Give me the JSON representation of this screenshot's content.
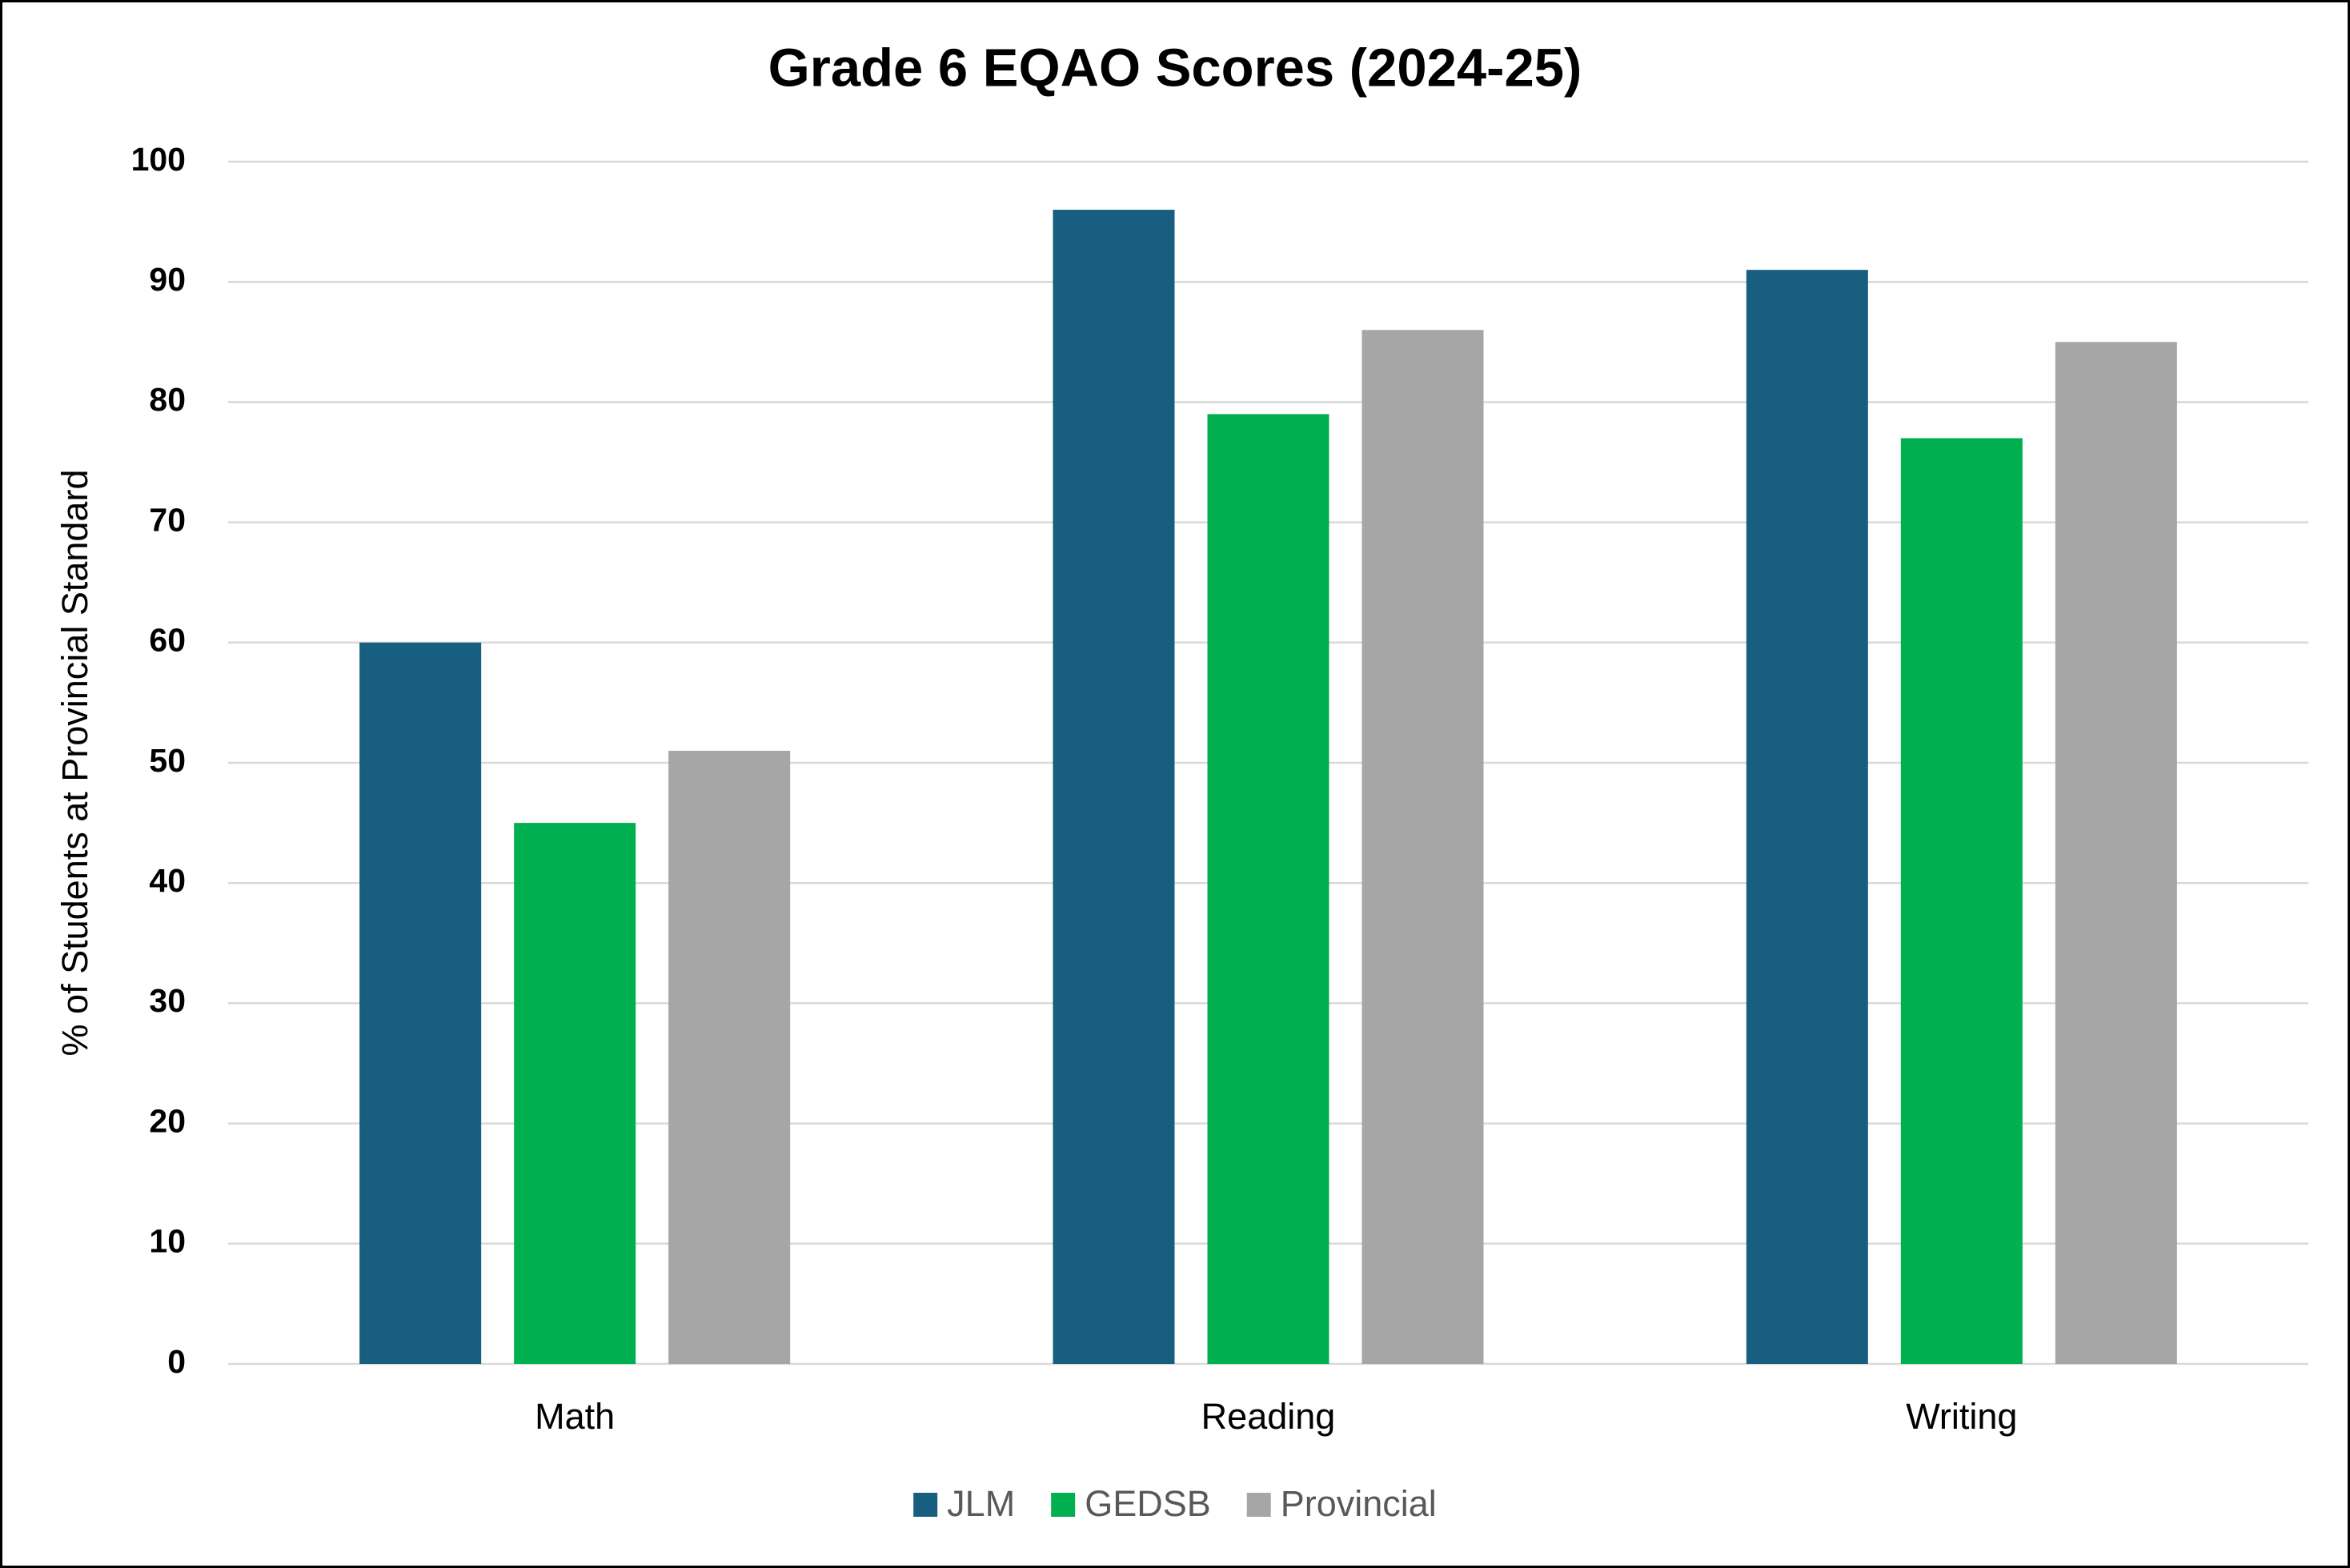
{
  "chart_data": {
    "type": "bar",
    "title": "Grade 6 EQAO Scores (2024-25)",
    "y_label": "% of Students at Provincial Standard",
    "categories": [
      "Math",
      "Reading",
      "Writing"
    ],
    "series": [
      {
        "name": "JLM",
        "color": "#175e80",
        "values": [
          60,
          96,
          91
        ]
      },
      {
        "name": "GEDSB",
        "color": "#00b050",
        "values": [
          45,
          79,
          77
        ]
      },
      {
        "name": "Provincial",
        "color": "#a6a6a6",
        "values": [
          51,
          86,
          85
        ]
      }
    ],
    "ylim": [
      0,
      100
    ],
    "yticks": [
      0,
      10,
      20,
      30,
      40,
      50,
      60,
      70,
      80,
      90,
      100
    ],
    "grid": true,
    "legend": "bottom"
  }
}
